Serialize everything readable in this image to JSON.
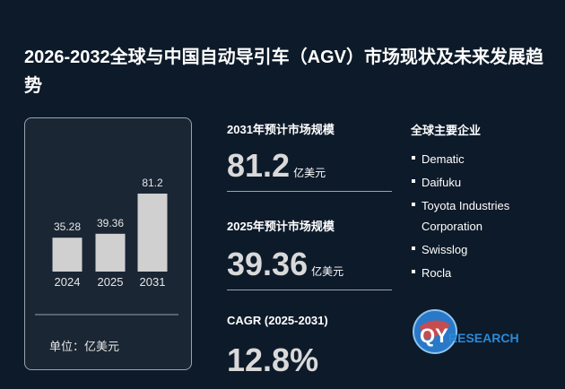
{
  "title": "2026-2032全球与中国自动导引车（AGV）市场现状及未来发展趋势",
  "chart_data": {
    "type": "bar",
    "categories": [
      "2024",
      "2025",
      "2031"
    ],
    "values": [
      35.28,
      39.36,
      81.2
    ],
    "color": "#d0d0d0",
    "unit_label": "单位：亿美元"
  },
  "stats": [
    {
      "label": "2031年预计市场规模",
      "value": "81.2",
      "unit": "亿美元"
    },
    {
      "label": "2025年预计市场规模",
      "value": "39.36",
      "unit": "亿美元"
    },
    {
      "label": "CAGR (2025-2031)",
      "value": "12.8%"
    }
  ],
  "companies": {
    "title": "全球主要企业",
    "items": [
      "Dematic",
      "Daifuku",
      "Toyota Industries Corporation",
      "Swisslog",
      "Rocla"
    ]
  },
  "logo": {
    "prefix": "QY",
    "suffix": "RESEARCH"
  }
}
